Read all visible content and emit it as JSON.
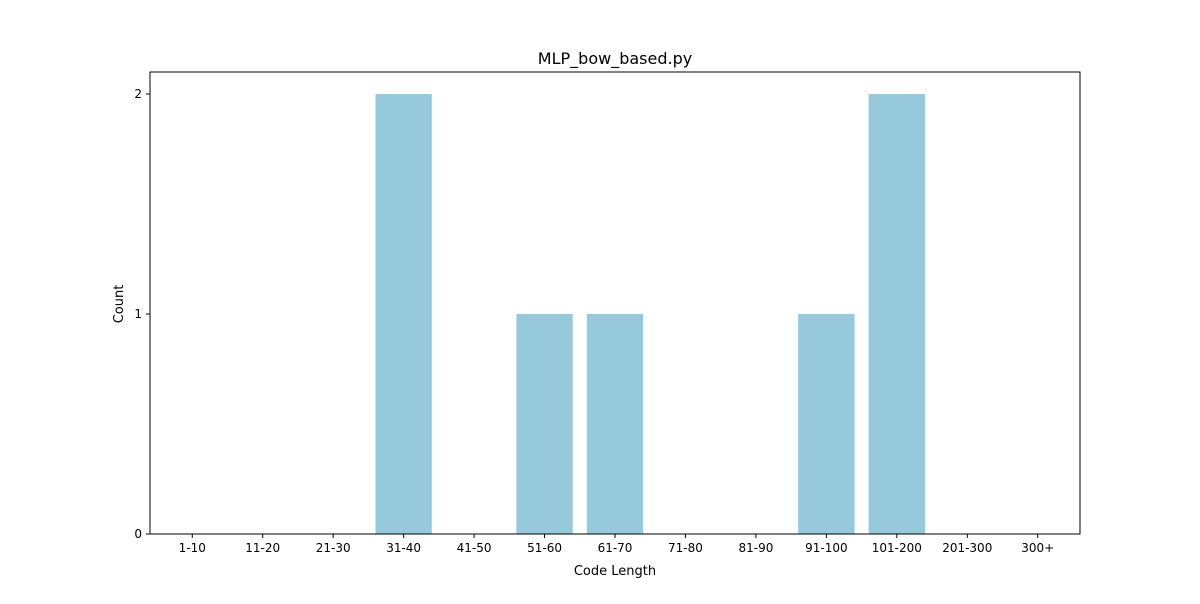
{
  "chart_data": {
    "type": "bar",
    "title": "MLP_bow_based.py",
    "xlabel": "Code Length",
    "ylabel": "Count",
    "categories": [
      "1-10",
      "11-20",
      "21-30",
      "31-40",
      "41-50",
      "51-60",
      "61-70",
      "71-80",
      "81-90",
      "91-100",
      "101-200",
      "201-300",
      "300+"
    ],
    "values": [
      0,
      0,
      0,
      2,
      0,
      1,
      1,
      0,
      0,
      1,
      2,
      0,
      0
    ],
    "ylim": [
      0,
      2.1
    ],
    "yticks": [
      0,
      1,
      2
    ],
    "grid": false,
    "bar_color": "#96c9dc"
  }
}
